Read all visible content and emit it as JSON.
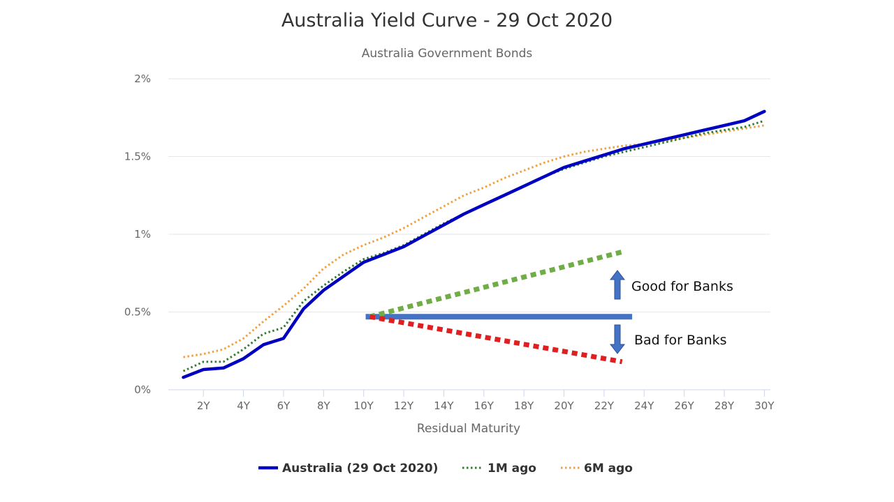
{
  "chart_data": {
    "type": "line",
    "title": "Australia Yield Curve - 29 Oct 2020",
    "subtitle": "Australia Government Bonds",
    "xlabel": "Residual Maturity",
    "ylabel": "",
    "x_tick_labels": [
      "2Y",
      "4Y",
      "6Y",
      "8Y",
      "10Y",
      "12Y",
      "14Y",
      "16Y",
      "18Y",
      "20Y",
      "22Y",
      "24Y",
      "26Y",
      "28Y",
      "30Y"
    ],
    "x_ticks": [
      2,
      4,
      6,
      8,
      10,
      12,
      14,
      16,
      18,
      20,
      22,
      24,
      26,
      28,
      30
    ],
    "xlim": [
      0.25,
      30.3
    ],
    "y_tick_labels": [
      "0%",
      "0.5%",
      "1%",
      "1.5%",
      "2%"
    ],
    "y_ticks": [
      0,
      0.5,
      1,
      1.5,
      2
    ],
    "ylim": [
      0,
      2
    ],
    "grid": true,
    "legend_position": "bottom",
    "series": [
      {
        "name": "Australia (29 Oct 2020)",
        "color": "#0000c0",
        "style": "solid",
        "x": [
          1,
          2,
          3,
          4,
          5,
          6,
          7,
          8,
          9,
          10,
          11,
          12,
          13,
          14,
          15,
          16,
          17,
          18,
          19,
          20,
          21,
          22,
          23,
          24,
          25,
          26,
          27,
          28,
          29,
          30
        ],
        "y": [
          0.08,
          0.13,
          0.14,
          0.2,
          0.29,
          0.33,
          0.52,
          0.64,
          0.73,
          0.82,
          0.87,
          0.92,
          0.99,
          1.06,
          1.13,
          1.19,
          1.25,
          1.31,
          1.37,
          1.43,
          1.47,
          1.51,
          1.55,
          1.58,
          1.61,
          1.64,
          1.67,
          1.7,
          1.73,
          1.79
        ]
      },
      {
        "name": "1M ago",
        "color": "#2e7d32",
        "style": "dotted",
        "x": [
          1,
          2,
          3,
          4,
          5,
          6,
          7,
          8,
          9,
          10,
          11,
          12,
          13,
          14,
          15,
          16,
          17,
          18,
          19,
          20,
          21,
          22,
          23,
          24,
          25,
          26,
          27,
          28,
          29,
          30
        ],
        "y": [
          0.12,
          0.18,
          0.18,
          0.26,
          0.36,
          0.4,
          0.57,
          0.67,
          0.76,
          0.84,
          0.88,
          0.93,
          1.0,
          1.07,
          1.13,
          1.19,
          1.25,
          1.31,
          1.37,
          1.42,
          1.46,
          1.5,
          1.53,
          1.56,
          1.59,
          1.62,
          1.65,
          1.67,
          1.69,
          1.73
        ]
      },
      {
        "name": "6M ago",
        "color": "#f0a040",
        "style": "dotted",
        "x": [
          1,
          2,
          3,
          4,
          5,
          6,
          7,
          8,
          9,
          10,
          11,
          12,
          13,
          14,
          15,
          16,
          17,
          18,
          19,
          20,
          21,
          22,
          23,
          24,
          25,
          26,
          27,
          28,
          29,
          30
        ],
        "y": [
          0.21,
          0.23,
          0.26,
          0.33,
          0.44,
          0.54,
          0.65,
          0.78,
          0.87,
          0.93,
          0.98,
          1.04,
          1.11,
          1.18,
          1.25,
          1.3,
          1.36,
          1.41,
          1.46,
          1.5,
          1.53,
          1.55,
          1.57,
          1.58,
          1.6,
          1.62,
          1.64,
          1.66,
          1.68,
          1.7
        ]
      }
    ],
    "annotations": {
      "baseline": {
        "x": [
          10.1,
          23.4
        ],
        "y": [
          0.47,
          0.47
        ],
        "color": "#4472c4"
      },
      "good_line": {
        "x": [
          10.3,
          23.0
        ],
        "y": [
          0.47,
          0.89
        ],
        "color": "#70ad47"
      },
      "bad_line": {
        "x": [
          10.3,
          22.9
        ],
        "y": [
          0.47,
          0.18
        ],
        "color": "#e02020"
      },
      "good_text": "Good for Banks",
      "bad_text": "Bad for Banks",
      "arrow_color": "#4472c4"
    }
  }
}
